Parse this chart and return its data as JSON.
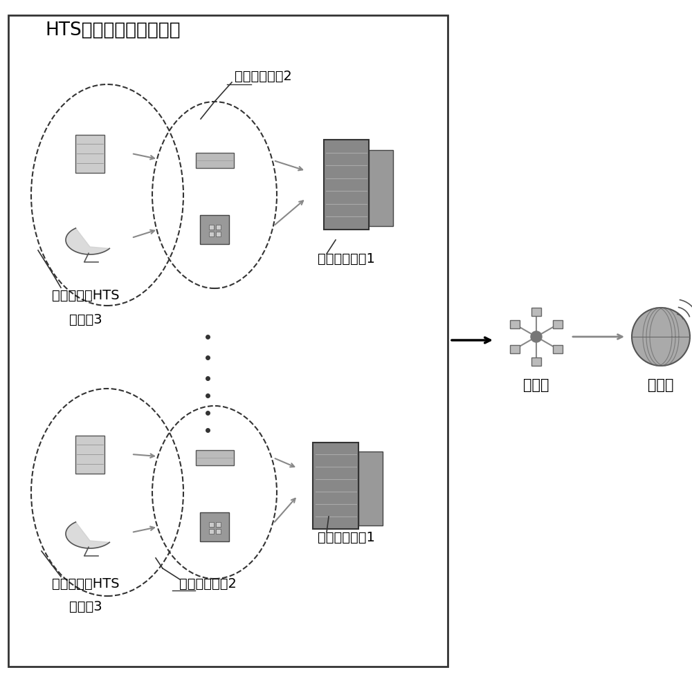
{
  "title": "HTS信关站数据处理系统",
  "bg_color": "#ffffff",
  "text_color": "#000000",
  "label_jidai_top": "基带处理设备2",
  "label_jizhu_top": "集中处理设备1",
  "label_juzhan_top_line1": "高通量卫星HTS",
  "label_juzhan_top_line2": "信关站3",
  "label_jidai_bot": "基带处理设备2",
  "label_jizhu_bot": "集中处理设备1",
  "label_juzhan_bot_line1": "高通量卫星HTS",
  "label_juzhan_bot_line2": "信关站3",
  "label_xinxin": "核心网",
  "label_shujuwang": "数据网",
  "font_size_title": 19,
  "font_size_label": 14,
  "font_size_small": 12
}
